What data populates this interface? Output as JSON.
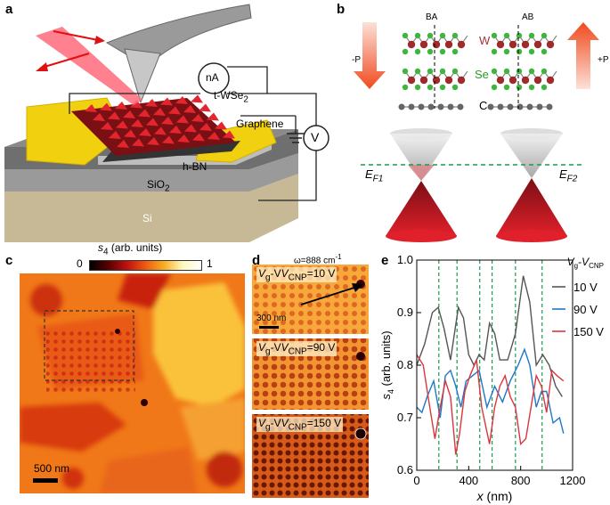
{
  "panels": {
    "a": {
      "letter": "a",
      "labels": {
        "current_meter": "nA",
        "voltmeter": "V",
        "twisted_layer": "t-WSe",
        "twisted_layer_sub": "2",
        "graphene": "Graphene",
        "hbn": "h-BN",
        "oxide": "SiO",
        "oxide_sub": "2",
        "substrate": "Si"
      }
    },
    "b": {
      "letter": "b",
      "stackings": [
        "BA",
        "AB"
      ],
      "atom_labels": {
        "tungsten": "W",
        "selenium": "Se",
        "carbon": "C"
      },
      "polarization": {
        "negative": "-P",
        "positive": "+P"
      },
      "fermi_levels": {
        "left": "E",
        "left_sub": "F1",
        "right": "E",
        "right_sub": "F2"
      }
    },
    "c": {
      "letter": "c",
      "colorbar_label": "s",
      "colorbar_label_sub": "4",
      "colorbar_units": "(arb. units)",
      "colorbar_min": "0",
      "colorbar_max": "1",
      "scale_bar": "500 nm"
    },
    "d": {
      "letter": "d",
      "frequency": "ω=888 cm",
      "frequency_sup": "-1",
      "scale_bar": "300 nm",
      "images": [
        {
          "label_v": "V",
          "label_g": "g",
          "label_mid": "-V",
          "label_cnp": "CNP",
          "label_val": "=10 V"
        },
        {
          "label_v": "V",
          "label_g": "g",
          "label_mid": "-V",
          "label_cnp": "CNP",
          "label_val": "=90 V"
        },
        {
          "label_v": "V",
          "label_g": "g",
          "label_mid": "-V",
          "label_cnp": "CNP",
          "label_val": "=150 V"
        }
      ]
    },
    "e": {
      "letter": "e"
    }
  },
  "chart_data": {
    "type": "line",
    "xlabel": "x (nm)",
    "ylabel": "s4 (arb. units)",
    "xlim": [
      0,
      1200
    ],
    "ylim": [
      0.6,
      1.0
    ],
    "xticks": [
      0,
      400,
      800,
      1200
    ],
    "yticks": [
      0.6,
      0.7,
      0.8,
      0.9,
      1.0
    ],
    "legend_title": "Vg-VCNP",
    "legend_position": "top-right",
    "dashed_lines_x": [
      170,
      310,
      485,
      580,
      760,
      965
    ],
    "series": [
      {
        "name": "10 V",
        "color": "#555555",
        "x": [
          0,
          60,
          120,
          165,
          210,
          260,
          320,
          360,
          400,
          440,
          480,
          520,
          560,
          600,
          640,
          700,
          760,
          820,
          870,
          920,
          970,
          1020,
          1070,
          1120
        ],
        "values": [
          0.8,
          0.84,
          0.9,
          0.91,
          0.87,
          0.81,
          0.91,
          0.89,
          0.82,
          0.8,
          0.82,
          0.81,
          0.88,
          0.86,
          0.81,
          0.81,
          0.86,
          0.97,
          0.92,
          0.8,
          0.82,
          0.8,
          0.76,
          0.74
        ]
      },
      {
        "name": "90 V",
        "color": "#1f77c8",
        "x": [
          0,
          40,
          80,
          130,
          180,
          220,
          260,
          300,
          340,
          380,
          430,
          480,
          540,
          600,
          660,
          720,
          780,
          830,
          870,
          920,
          960,
          1000,
          1050,
          1100,
          1130
        ],
        "values": [
          0.72,
          0.71,
          0.74,
          0.77,
          0.7,
          0.78,
          0.79,
          0.76,
          0.72,
          0.77,
          0.78,
          0.79,
          0.72,
          0.76,
          0.73,
          0.77,
          0.8,
          0.83,
          0.8,
          0.72,
          0.75,
          0.75,
          0.69,
          0.7,
          0.67
        ]
      },
      {
        "name": "150 V",
        "color": "#d9363e",
        "x": [
          0,
          50,
          100,
          140,
          180,
          220,
          260,
          300,
          330,
          370,
          410,
          460,
          500,
          560,
          600,
          640,
          680,
          720,
          760,
          800,
          840,
          880,
          920,
          960,
          1000,
          1040,
          1080,
          1130
        ],
        "values": [
          0.82,
          0.8,
          0.72,
          0.66,
          0.72,
          0.77,
          0.74,
          0.63,
          0.67,
          0.75,
          0.78,
          0.81,
          0.72,
          0.65,
          0.72,
          0.76,
          0.78,
          0.74,
          0.72,
          0.65,
          0.66,
          0.72,
          0.78,
          0.76,
          0.71,
          0.79,
          0.78,
          0.77
        ]
      }
    ]
  }
}
